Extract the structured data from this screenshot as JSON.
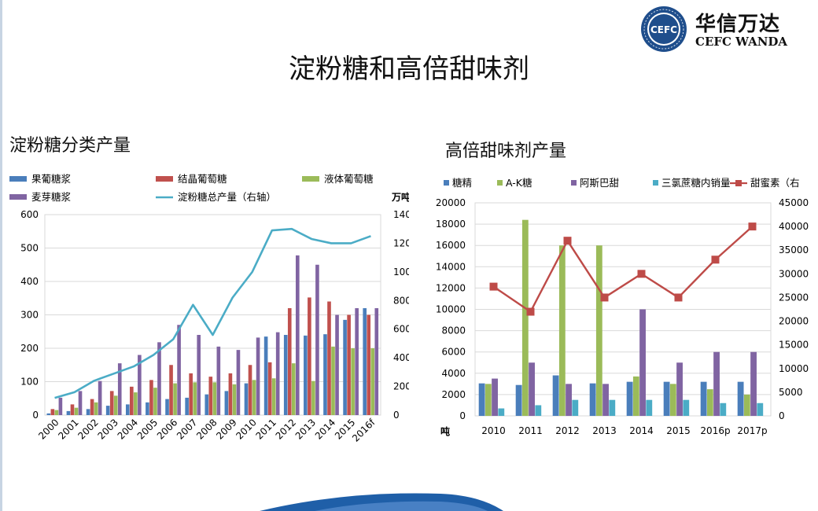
{
  "header": {
    "title": "淀粉糖和高倍甜味剂",
    "logo_cn": "华信万达",
    "logo_en": "CEFC WANDA",
    "logo_badge": "CEFC"
  },
  "colors": {
    "blue": "#4a7ebb",
    "red": "#c0504d",
    "green": "#9bbb59",
    "purple": "#8064a2",
    "cyan": "#4bacc6",
    "line_red": "#be4b48",
    "logo_navy": "#1f4e8c"
  },
  "chart_data": [
    {
      "type": "bar",
      "title": "淀粉糖分类产量",
      "right_axis_unit": "万吨",
      "categories": [
        "2000",
        "2001",
        "2002",
        "2003",
        "2004",
        "2005",
        "2006",
        "2007",
        "2008",
        "2009",
        "2010",
        "2011",
        "2012",
        "2013",
        "2014",
        "2015",
        "2016f"
      ],
      "ylim": [
        0,
        600
      ],
      "yticks": [
        "0",
        "100",
        "200",
        "300",
        "400",
        "500",
        "600"
      ],
      "y2lim": [
        0,
        1400
      ],
      "y2ticks": [
        "0",
        "200",
        "400",
        "600",
        "800",
        "1000",
        "1200",
        "1400"
      ],
      "legend_position": "top",
      "grid": true,
      "series": [
        {
          "name": "果葡糖浆",
          "axis": "left",
          "values": [
            5,
            12,
            18,
            28,
            32,
            38,
            48,
            52,
            62,
            72,
            95,
            235,
            240,
            238,
            242,
            285,
            320
          ]
        },
        {
          "name": "结晶葡萄糖",
          "axis": "left",
          "values": [
            18,
            32,
            48,
            72,
            85,
            105,
            150,
            125,
            115,
            125,
            150,
            158,
            320,
            352,
            340,
            300,
            300
          ]
        },
        {
          "name": "液体葡萄糖",
          "axis": "left",
          "values": [
            15,
            22,
            38,
            58,
            68,
            82,
            95,
            98,
            98,
            92,
            105,
            110,
            155,
            102,
            205,
            200,
            200
          ]
        },
        {
          "name": "麦芽糖浆",
          "axis": "left",
          "values": [
            52,
            72,
            102,
            155,
            180,
            218,
            270,
            240,
            205,
            195,
            232,
            248,
            478,
            450,
            300,
            320,
            320
          ]
        },
        {
          "name": "淀粉糖总产量（右轴）",
          "axis": "right",
          "type": "line",
          "values": [
            120,
            160,
            240,
            290,
            340,
            420,
            530,
            770,
            560,
            820,
            1000,
            1290,
            1300,
            1230,
            1200,
            1200,
            1250
          ]
        }
      ]
    },
    {
      "type": "bar",
      "title": "高倍甜味剂产量",
      "left_axis_unit": "吨",
      "categories": [
        "2010",
        "2011",
        "2012",
        "2013",
        "2014",
        "2015",
        "2016p",
        "2017p"
      ],
      "ylim": [
        0,
        20000
      ],
      "yticks": [
        "0",
        "2000",
        "4000",
        "6000",
        "8000",
        "10000",
        "12000",
        "14000",
        "16000",
        "18000",
        "20000"
      ],
      "y2lim": [
        0,
        45000
      ],
      "y2ticks": [
        "0",
        "5000",
        "10000",
        "15000",
        "20000",
        "25000",
        "30000",
        "35000",
        "40000",
        "45000"
      ],
      "legend_position": "top",
      "grid": true,
      "series": [
        {
          "name": "糖精",
          "axis": "left",
          "values": [
            3050,
            2900,
            3800,
            3050,
            3200,
            3200,
            3200,
            3200
          ]
        },
        {
          "name": "A-K糖",
          "axis": "left",
          "values": [
            3000,
            18400,
            16000,
            16000,
            3700,
            3000,
            2500,
            2000
          ]
        },
        {
          "name": "阿斯巴甜",
          "axis": "left",
          "values": [
            3500,
            5000,
            3000,
            3000,
            10000,
            5000,
            6000,
            6000
          ]
        },
        {
          "name": "三氯蔗糖内销量",
          "axis": "left",
          "values": [
            700,
            1000,
            1500,
            1500,
            1500,
            1500,
            1200,
            1200
          ]
        },
        {
          "name": "甜蜜素（右",
          "axis": "right",
          "type": "line",
          "values": [
            27300,
            22000,
            37000,
            25000,
            30000,
            25000,
            33000,
            40000
          ]
        }
      ]
    }
  ]
}
